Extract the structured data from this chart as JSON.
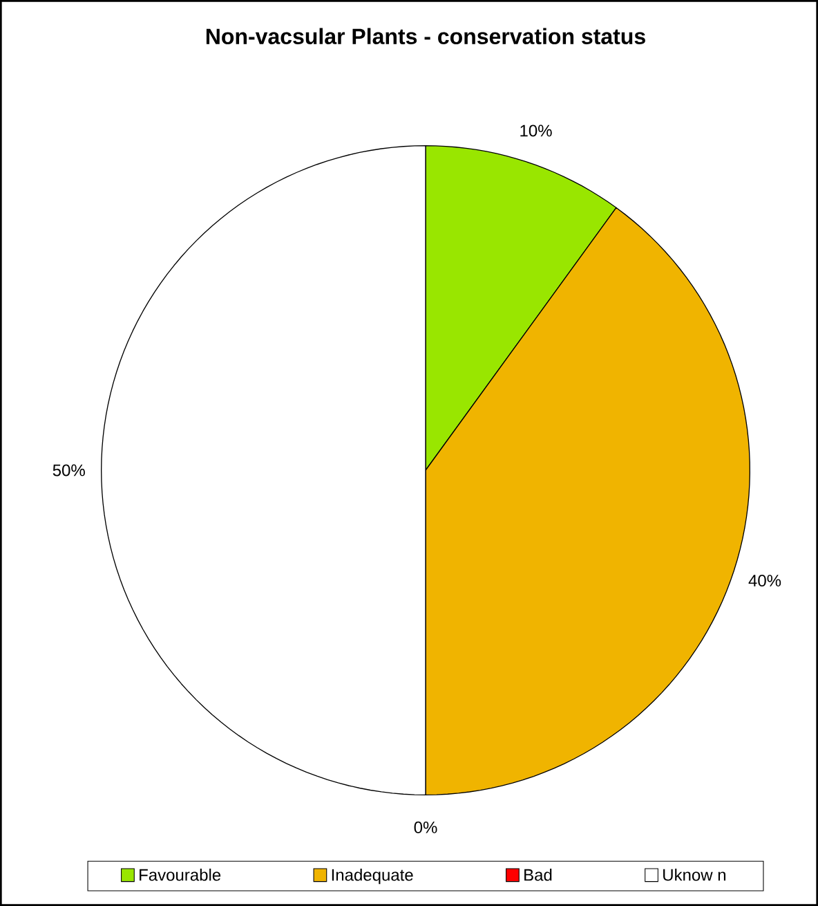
{
  "chart_data": {
    "type": "pie",
    "title": "Non-vacsular Plants - conservation status",
    "categories": [
      "Favourable",
      "Inadequate",
      "Bad",
      "Uknow n"
    ],
    "values": [
      10,
      40,
      0,
      50
    ],
    "colors": [
      "#99e600",
      "#f0b400",
      "#ff0000",
      "#ffffff"
    ],
    "value_labels": [
      "10%",
      "40%",
      "0%",
      "50%"
    ],
    "legend": "bottom"
  }
}
